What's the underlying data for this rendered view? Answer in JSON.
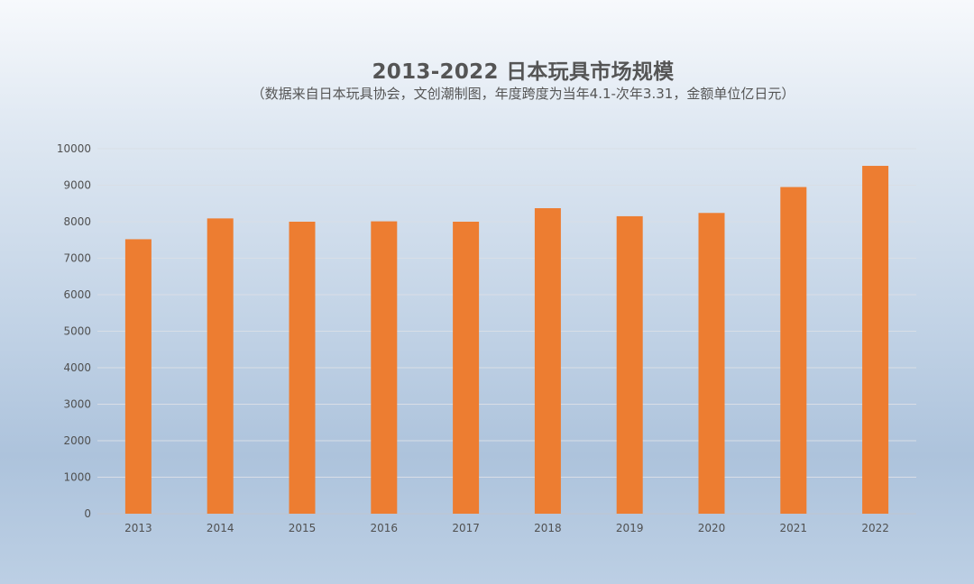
{
  "chart_data": {
    "type": "bar",
    "title": "2013-2022 日本玩具市场规模",
    "subtitle": "（数据来自日本玩具协会，文创潮制图，年度跨度为当年4.1-次年3.31，金额单位亿日元）",
    "xlabel": "",
    "ylabel": "",
    "categories": [
      "2013",
      "2014",
      "2015",
      "2016",
      "2017",
      "2018",
      "2019",
      "2020",
      "2021",
      "2022"
    ],
    "values": [
      7520,
      8090,
      8000,
      8010,
      8000,
      8370,
      8150,
      8240,
      8950,
      9530
    ],
    "ylim": [
      0,
      10000
    ],
    "yticks": [
      "0",
      "1000",
      "2000",
      "3000",
      "4000",
      "5000",
      "6000",
      "7000",
      "8000",
      "9000",
      "10000"
    ],
    "grid": true,
    "legend": "none",
    "colors": {
      "bar": "#ED7D31",
      "grid": "#D9DEE6",
      "axis": "#BFC6D0",
      "text": "#505050"
    }
  }
}
